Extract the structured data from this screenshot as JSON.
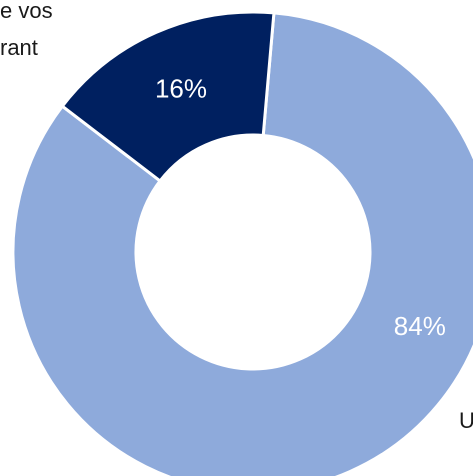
{
  "text_fragments": [
    "e vos",
    "rant",
    "U"
  ],
  "chart_data": {
    "type": "donut",
    "title": "",
    "slices": [
      {
        "label": "",
        "value": 84,
        "value_label": "84%",
        "color": "#8eaadb",
        "label_color": "#ffffff"
      },
      {
        "label": "",
        "value": 16,
        "value_label": "16%",
        "color": "#002060",
        "label_color": "#ffffff"
      }
    ],
    "start_angle_deg": 5,
    "direction": "clockwise",
    "hole_color": "#ffffff",
    "separator_color": "#ffffff"
  }
}
